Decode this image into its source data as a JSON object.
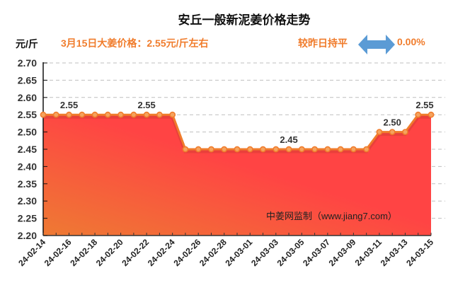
{
  "header": {
    "title": "安丘一般新泥姜价格走势",
    "unit": "元/斤",
    "price_note": "3月15日大姜价格：2.55元/斤左右",
    "change_note": "较昨日持平",
    "change_icon": "double-arrow-icon",
    "change_pct": "0.00%"
  },
  "watermark": "中姜网监制（www.jiang7.com）",
  "colors": {
    "line": "#F07C2C",
    "fill_top": "#FF4444",
    "fill_bottom": "#EE7A33",
    "accent_text": "#F07C2C",
    "arrow": "#5B9BD5",
    "grid": "#BFBFBF"
  },
  "chart_data": {
    "type": "area",
    "title": "安丘一般新泥姜价格走势",
    "xlabel": "",
    "ylabel": "元/斤",
    "ylim": [
      2.2,
      2.7
    ],
    "yticks": [
      "2.70",
      "2.65",
      "2.60",
      "2.55",
      "2.50",
      "2.45",
      "2.40",
      "2.35",
      "2.30",
      "2.25",
      "2.20"
    ],
    "grid": "horizontal dashed",
    "legend": "none",
    "x": [
      "24-02-14",
      "24-02-15",
      "24-02-16",
      "24-02-17",
      "24-02-18",
      "24-02-19",
      "24-02-20",
      "24-02-21",
      "24-02-22",
      "24-02-23",
      "24-02-24",
      "24-02-25",
      "24-02-26",
      "24-02-27",
      "24-02-28",
      "24-02-29",
      "24-03-01",
      "24-03-02",
      "24-03-03",
      "24-03-04",
      "24-03-05",
      "24-03-06",
      "24-03-07",
      "24-03-08",
      "24-03-09",
      "24-03-10",
      "24-03-11",
      "24-03-12",
      "24-03-13",
      "24-03-14",
      "24-03-15"
    ],
    "xtick_labels": [
      "24-02-14",
      "24-02-16",
      "24-02-18",
      "24-02-20",
      "24-02-22",
      "24-02-24",
      "24-02-26",
      "24-02-28",
      "24-03-01",
      "24-03-03",
      "24-03-05",
      "24-03-07",
      "24-03-09",
      "24-03-11",
      "24-03-13",
      "24-03-15"
    ],
    "series": [
      {
        "name": "安丘一般新泥姜价格",
        "values": [
          2.55,
          2.55,
          2.55,
          2.55,
          2.55,
          2.55,
          2.55,
          2.55,
          2.55,
          2.55,
          2.55,
          2.45,
          2.45,
          2.45,
          2.45,
          2.45,
          2.45,
          2.45,
          2.45,
          2.45,
          2.45,
          2.45,
          2.45,
          2.45,
          2.45,
          2.45,
          2.5,
          2.5,
          2.5,
          2.55,
          2.55
        ]
      }
    ],
    "annotations": [
      {
        "index": 2,
        "text": "2.55"
      },
      {
        "index": 8,
        "text": "2.55"
      },
      {
        "index": 19,
        "text": "2.45"
      },
      {
        "index": 27,
        "text": "2.50"
      },
      {
        "index": 30,
        "text": "2.55"
      }
    ]
  }
}
